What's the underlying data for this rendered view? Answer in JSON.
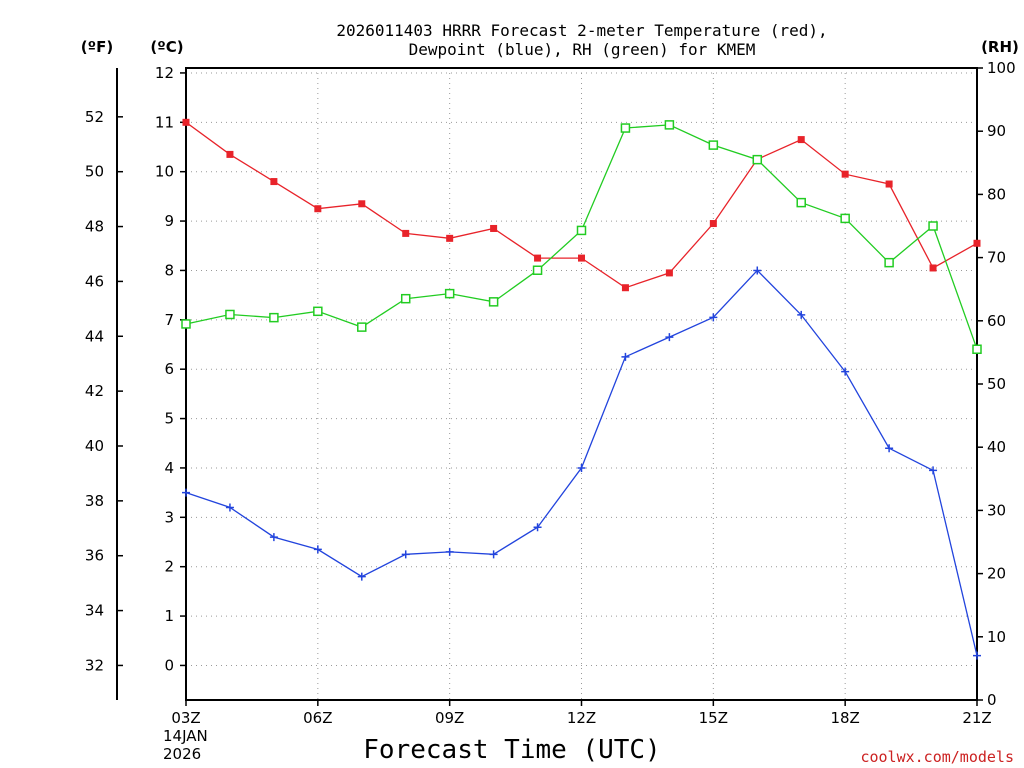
{
  "chart_data": {
    "type": "line",
    "title": "2026011403 HRRR Forecast 2-meter Temperature (red),",
    "subtitle": "Dewpoint (blue), RH (green) for KMEM",
    "xlabel": "Forecast Time (UTC)",
    "date_label": [
      "14JAN",
      "2026"
    ],
    "credit": "coolwx.com/models",
    "units": {
      "fahrenheit": "(ºF)",
      "celsius": "(ºC)",
      "rh": "(RH)"
    },
    "x_hours": [
      3,
      4,
      5,
      6,
      7,
      8,
      9,
      10,
      11,
      12,
      13,
      14,
      15,
      16,
      17,
      18,
      19,
      20,
      21
    ],
    "x_ticks": [
      {
        "hour": 3,
        "label": "03Z"
      },
      {
        "hour": 6,
        "label": "06Z"
      },
      {
        "hour": 9,
        "label": "09Z"
      },
      {
        "hour": 12,
        "label": "12Z"
      },
      {
        "hour": 15,
        "label": "15Z"
      },
      {
        "hour": 18,
        "label": "18Z"
      },
      {
        "hour": 21,
        "label": "21Z"
      }
    ],
    "celsius_axis": {
      "min": -0.7,
      "max": 12.1,
      "ticks": [
        "0",
        "1",
        "2",
        "3",
        "4",
        "5",
        "6",
        "7",
        "8",
        "9",
        "10",
        "11",
        "12"
      ]
    },
    "fahrenheit_axis": {
      "ticks": [
        "32",
        "34",
        "36",
        "38",
        "40",
        "42",
        "44",
        "46",
        "48",
        "50",
        "52"
      ]
    },
    "rh_axis": {
      "min": 0,
      "max": 100,
      "ticks": [
        "0",
        "10",
        "20",
        "30",
        "40",
        "50",
        "60",
        "70",
        "80",
        "90",
        "100"
      ]
    },
    "grid": true,
    "series": [
      {
        "name": "Temperature",
        "axis": "celsius",
        "color": "#e8232a",
        "marker": "filled-square",
        "values": [
          11.0,
          10.35,
          9.8,
          9.25,
          9.35,
          8.75,
          8.65,
          8.85,
          8.25,
          8.25,
          7.65,
          7.95,
          8.95,
          10.25,
          10.65,
          9.95,
          9.75,
          8.05,
          8.55
        ]
      },
      {
        "name": "Dewpoint",
        "axis": "celsius",
        "color": "#2244dd",
        "marker": "plus",
        "values": [
          3.5,
          3.2,
          2.6,
          2.35,
          1.8,
          2.25,
          2.3,
          2.25,
          2.8,
          4.0,
          6.25,
          6.65,
          7.05,
          8.0,
          7.1,
          5.95,
          4.4,
          3.95,
          0.2
        ]
      },
      {
        "name": "RH",
        "axis": "rh",
        "color": "#22cc22",
        "marker": "open-square",
        "values": [
          59.5,
          61.0,
          60.5,
          61.5,
          59.0,
          63.5,
          64.3,
          63.0,
          68.0,
          74.3,
          90.5,
          91.0,
          87.8,
          85.5,
          78.7,
          76.2,
          69.2,
          75.0,
          55.5
        ]
      }
    ]
  }
}
